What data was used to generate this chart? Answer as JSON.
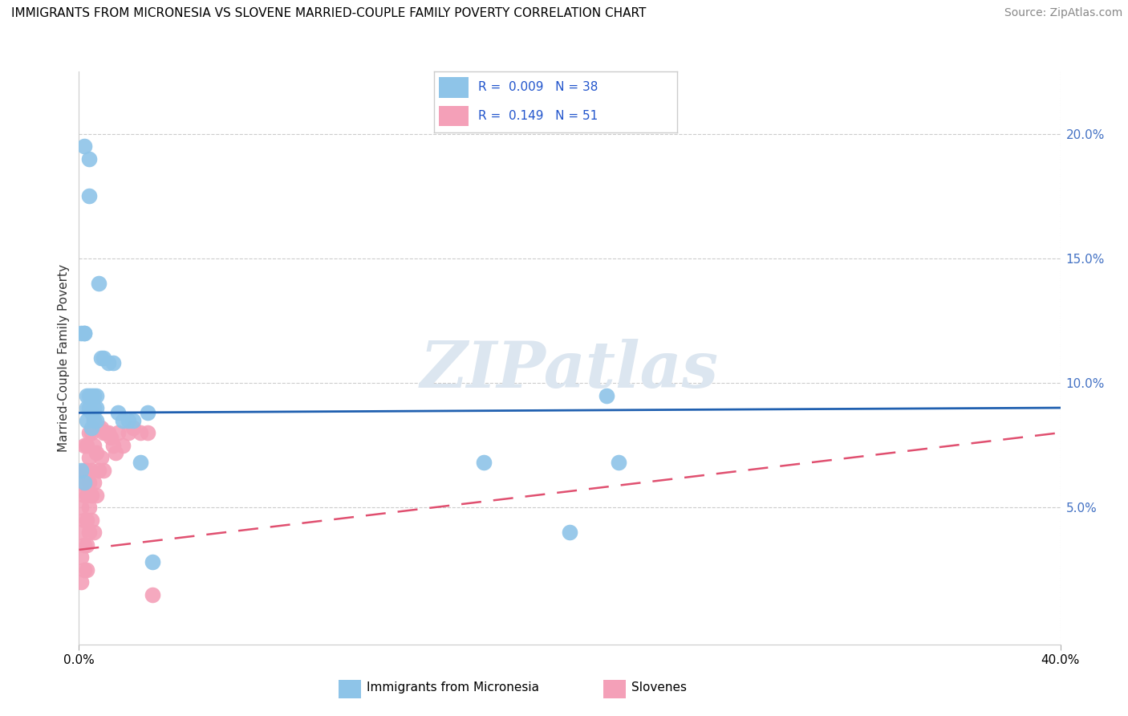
{
  "title": "IMMIGRANTS FROM MICRONESIA VS SLOVENE MARRIED-COUPLE FAMILY POVERTY CORRELATION CHART",
  "source": "Source: ZipAtlas.com",
  "ylabel": "Married-Couple Family Poverty",
  "ylabel_right_vals": [
    0.2,
    0.15,
    0.1,
    0.05
  ],
  "ylabel_right_labels": [
    "20.0%",
    "15.0%",
    "10.0%",
    "5.0%"
  ],
  "xlim": [
    0.0,
    0.4
  ],
  "ylim": [
    -0.005,
    0.225
  ],
  "color_blue": "#8ec4e8",
  "color_pink": "#f4a0b8",
  "color_trend_blue": "#2060b0",
  "color_trend_pink": "#e05070",
  "watermark_color": "#dce6f0",
  "blue_trend_y0": 0.088,
  "blue_trend_y1": 0.09,
  "pink_trend_y0": 0.033,
  "pink_trend_y1": 0.08,
  "blue_x": [
    0.002,
    0.004,
    0.004,
    0.002,
    0.002,
    0.001,
    0.001,
    0.002,
    0.003,
    0.003,
    0.003,
    0.004,
    0.004,
    0.005,
    0.005,
    0.005,
    0.006,
    0.006,
    0.006,
    0.007,
    0.007,
    0.007,
    0.008,
    0.009,
    0.01,
    0.012,
    0.014,
    0.016,
    0.018,
    0.02,
    0.025,
    0.028,
    0.165,
    0.2,
    0.215,
    0.22,
    0.022,
    0.03
  ],
  "blue_y": [
    0.195,
    0.19,
    0.175,
    0.12,
    0.12,
    0.12,
    0.065,
    0.06,
    0.095,
    0.09,
    0.085,
    0.095,
    0.09,
    0.095,
    0.088,
    0.082,
    0.095,
    0.09,
    0.085,
    0.095,
    0.09,
    0.085,
    0.14,
    0.11,
    0.11,
    0.108,
    0.108,
    0.088,
    0.085,
    0.085,
    0.068,
    0.088,
    0.068,
    0.04,
    0.095,
    0.068,
    0.085,
    0.028
  ],
  "pink_x": [
    0.001,
    0.001,
    0.001,
    0.001,
    0.001,
    0.002,
    0.002,
    0.002,
    0.002,
    0.002,
    0.002,
    0.003,
    0.003,
    0.003,
    0.003,
    0.003,
    0.003,
    0.004,
    0.004,
    0.004,
    0.004,
    0.004,
    0.005,
    0.005,
    0.005,
    0.005,
    0.006,
    0.006,
    0.006,
    0.006,
    0.007,
    0.007,
    0.007,
    0.008,
    0.008,
    0.009,
    0.009,
    0.01,
    0.01,
    0.011,
    0.012,
    0.013,
    0.014,
    0.015,
    0.016,
    0.018,
    0.02,
    0.022,
    0.025,
    0.028,
    0.03
  ],
  "pink_y": [
    0.06,
    0.05,
    0.04,
    0.03,
    0.02,
    0.075,
    0.065,
    0.055,
    0.045,
    0.035,
    0.025,
    0.075,
    0.065,
    0.055,
    0.045,
    0.035,
    0.025,
    0.08,
    0.07,
    0.06,
    0.05,
    0.04,
    0.08,
    0.065,
    0.055,
    0.045,
    0.085,
    0.075,
    0.06,
    0.04,
    0.082,
    0.072,
    0.055,
    0.082,
    0.065,
    0.082,
    0.07,
    0.08,
    0.065,
    0.08,
    0.08,
    0.078,
    0.075,
    0.072,
    0.08,
    0.075,
    0.08,
    0.082,
    0.08,
    0.08,
    0.015
  ]
}
